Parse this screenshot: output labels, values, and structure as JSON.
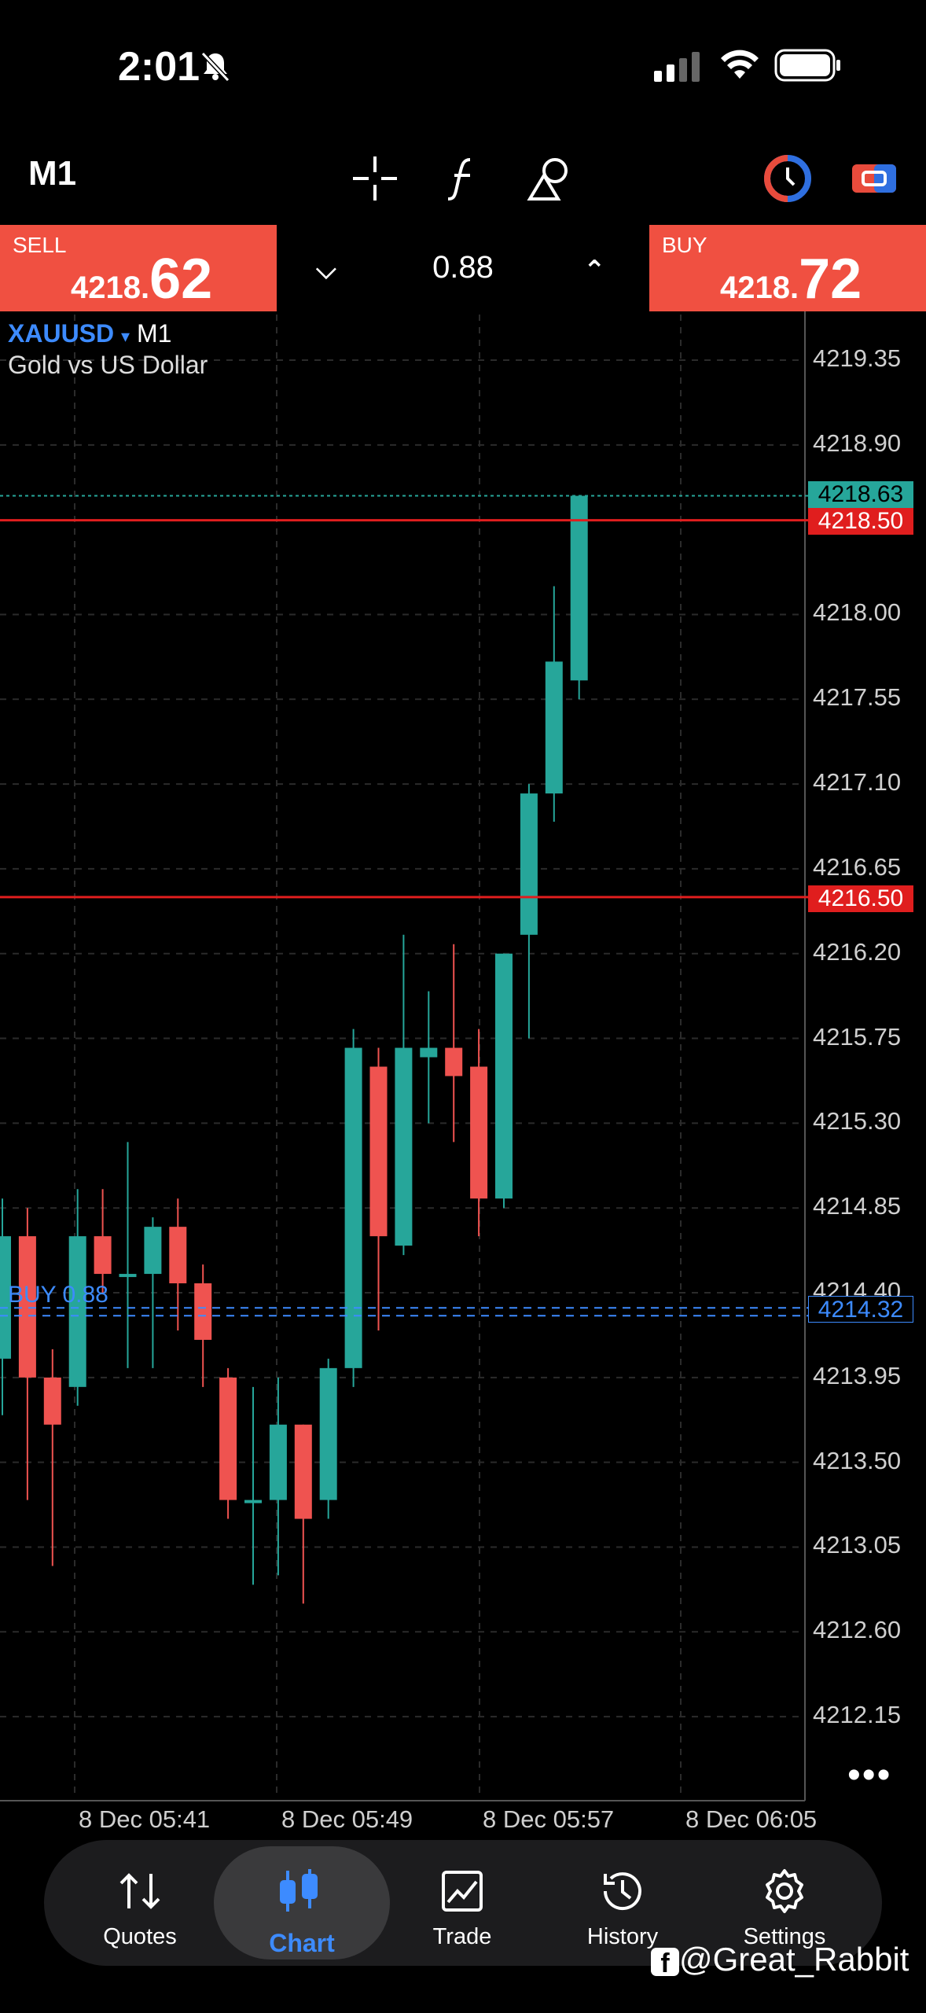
{
  "status_bar": {
    "time": "2:01"
  },
  "toolbar": {
    "timeframe": "M1"
  },
  "trade": {
    "sell_label": "SELL",
    "sell_price_main": "4218.",
    "sell_price_big": "62",
    "buy_label": "BUY",
    "buy_price_main": "4218.",
    "buy_price_big": "72",
    "lot": "0.88"
  },
  "chart": {
    "symbol": "XAUUSD",
    "timeframe": "M1",
    "description": "Gold vs US Dollar",
    "y_ticks": [
      "4219.35",
      "4218.90",
      "4218.00",
      "4217.55",
      "4217.10",
      "4216.65",
      "4216.20",
      "4215.75",
      "4215.30",
      "4214.85",
      "4214.40",
      "4213.95",
      "4213.50",
      "4213.05",
      "4212.60",
      "4212.15"
    ],
    "x_ticks": [
      "8 Dec 05:41",
      "8 Dec 05:49",
      "8 Dec 05:57",
      "8 Dec 06:05"
    ],
    "price_tags": {
      "current": "4218.63",
      "upper_level": "4218.50",
      "lower_level": "4216.50",
      "order": "4214.32"
    },
    "order_label": "BUY 0.88",
    "colors": {
      "bull": "#26a69a",
      "bear": "#ef5350",
      "level": "#e01e1e",
      "order": "#3d8bff"
    }
  },
  "chart_data": {
    "type": "candlestick",
    "ylim": [
      4211.95,
      4219.55
    ],
    "candles": [
      {
        "o": 4214.05,
        "h": 4214.9,
        "l": 4213.75,
        "c": 4214.7
      },
      {
        "o": 4214.7,
        "h": 4214.85,
        "l": 4213.3,
        "c": 4213.95
      },
      {
        "o": 4213.95,
        "h": 4214.1,
        "l": 4212.95,
        "c": 4213.7
      },
      {
        "o": 4213.9,
        "h": 4214.95,
        "l": 4213.8,
        "c": 4214.7
      },
      {
        "o": 4214.7,
        "h": 4214.95,
        "l": 4214.4,
        "c": 4214.5
      },
      {
        "o": 4214.5,
        "h": 4215.2,
        "l": 4214.0,
        "c": 4214.5
      },
      {
        "o": 4214.5,
        "h": 4214.8,
        "l": 4214.0,
        "c": 4214.75
      },
      {
        "o": 4214.75,
        "h": 4214.9,
        "l": 4214.2,
        "c": 4214.45
      },
      {
        "o": 4214.45,
        "h": 4214.55,
        "l": 4213.9,
        "c": 4214.15
      },
      {
        "o": 4213.95,
        "h": 4214.0,
        "l": 4213.2,
        "c": 4213.3
      },
      {
        "o": 4213.3,
        "h": 4213.9,
        "l": 4212.85,
        "c": 4213.3
      },
      {
        "o": 4213.3,
        "h": 4213.95,
        "l": 4212.9,
        "c": 4213.7
      },
      {
        "o": 4213.7,
        "h": 4213.7,
        "l": 4212.75,
        "c": 4213.2
      },
      {
        "o": 4213.3,
        "h": 4214.05,
        "l": 4213.2,
        "c": 4214.0
      },
      {
        "o": 4214.0,
        "h": 4215.8,
        "l": 4213.9,
        "c": 4215.7
      },
      {
        "o": 4215.6,
        "h": 4215.7,
        "l": 4214.2,
        "c": 4214.7
      },
      {
        "o": 4214.65,
        "h": 4216.3,
        "l": 4214.6,
        "c": 4215.7
      },
      {
        "o": 4215.65,
        "h": 4216.0,
        "l": 4215.3,
        "c": 4215.7
      },
      {
        "o": 4215.7,
        "h": 4216.25,
        "l": 4215.2,
        "c": 4215.55
      },
      {
        "o": 4215.6,
        "h": 4215.8,
        "l": 4214.7,
        "c": 4214.9
      },
      {
        "o": 4214.9,
        "h": 4216.2,
        "l": 4214.85,
        "c": 4216.2
      },
      {
        "o": 4216.3,
        "h": 4217.1,
        "l": 4215.75,
        "c": 4217.05
      },
      {
        "o": 4217.05,
        "h": 4218.15,
        "l": 4216.9,
        "c": 4217.75
      },
      {
        "o": 4217.65,
        "h": 4218.63,
        "l": 4217.55,
        "c": 4218.63
      }
    ]
  },
  "nav": {
    "quotes": "Quotes",
    "chart": "Chart",
    "trade": "Trade",
    "history": "History",
    "settings": "Settings",
    "active_color": "#3d8bff"
  },
  "watermark": "@Great_Rabbit"
}
